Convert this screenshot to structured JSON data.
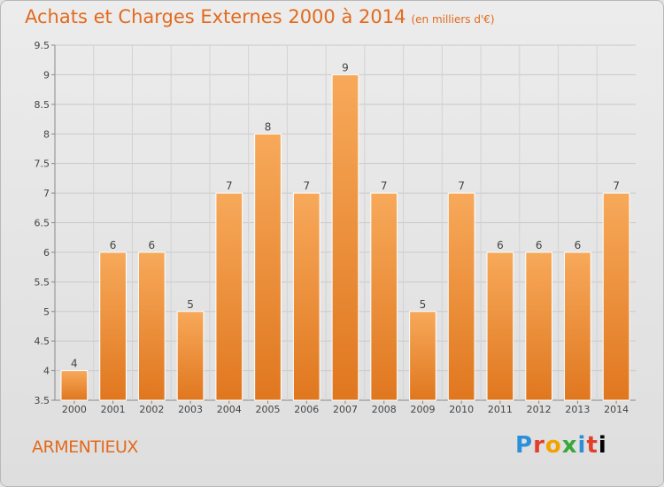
{
  "header": {
    "title": "Achats et Charges Externes 2000 à 2014",
    "subtitle": "(en milliers d'€)"
  },
  "footer": {
    "commune": "ARMENTIEUX",
    "logo_letters": [
      "P",
      "r",
      "o",
      "x",
      "i",
      "t",
      "i"
    ]
  },
  "colors": {
    "title": "#e36a1c",
    "bar_top": "#f7a95a",
    "bar_bottom": "#e0771f"
  },
  "chart_data": {
    "type": "bar",
    "title": "Achats et Charges Externes 2000 à 2014",
    "categories": [
      "2000",
      "2001",
      "2002",
      "2003",
      "2004",
      "2005",
      "2006",
      "2007",
      "2008",
      "2009",
      "2010",
      "2011",
      "2012",
      "2013",
      "2014"
    ],
    "values": [
      4,
      6,
      6,
      5,
      7,
      8,
      7,
      9,
      7,
      5,
      7,
      6,
      6,
      6,
      7
    ],
    "ylim": [
      3.5,
      9.5
    ],
    "yticks": [
      "3.5",
      "4",
      "4.5",
      "5",
      "5.5",
      "6",
      "6.5",
      "7",
      "7.5",
      "8",
      "8.5",
      "9",
      "9.5"
    ],
    "grid": true
  }
}
